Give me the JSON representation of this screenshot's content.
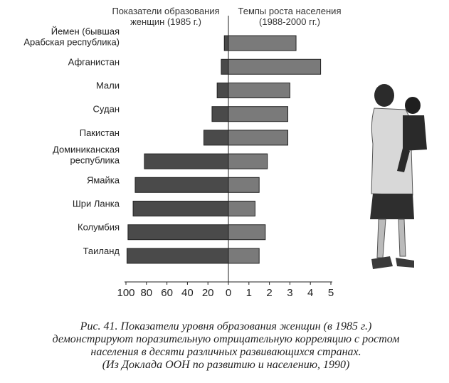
{
  "chart_data": {
    "type": "bar",
    "left_header": [
      "Показатели образования",
      "женщин (1985 г.)"
    ],
    "right_header": [
      "Темпы роста населения",
      "(1988-2000 гг.)"
    ],
    "categories": [
      [
        "Йемен (бывшая",
        "Арабская республика)"
      ],
      [
        "Афганистан"
      ],
      [
        "Мали"
      ],
      [
        "Судан"
      ],
      [
        "Пакистан"
      ],
      [
        "Доминиканская",
        "республика"
      ],
      [
        "Ямайка"
      ],
      [
        "Шри Ланка"
      ],
      [
        "Колумбия"
      ],
      [
        "Таиланд"
      ]
    ],
    "series": [
      {
        "values": [
          4,
          7,
          11,
          16,
          24,
          82,
          91,
          93,
          98,
          99
        ]
      },
      {
        "values": [
          3.3,
          4.5,
          3.0,
          2.9,
          2.9,
          1.9,
          1.5,
          1.3,
          1.8,
          1.5
        ]
      }
    ],
    "left_axis": {
      "range": [
        100,
        0
      ],
      "ticks": [
        "100",
        "80",
        "60",
        "40",
        "20",
        "0"
      ]
    },
    "right_axis": {
      "range": [
        0,
        5
      ],
      "ticks": [
        "1",
        "2",
        "3",
        "4",
        "5"
      ]
    },
    "colors": {
      "left_bar": "#4a4a4a",
      "right_bar": "#7a7a7a",
      "axis": "#222222"
    }
  },
  "caption": [
    "Рис. 41. Показатели уровня образования женщин (в 1985 г.)",
    "демонстрируют поразительную отрицательную корреляцию с ростом",
    "населения в десяти различных развивающихся странах.",
    "(Из Доклада ООН по развитию и населению, 1990)"
  ]
}
